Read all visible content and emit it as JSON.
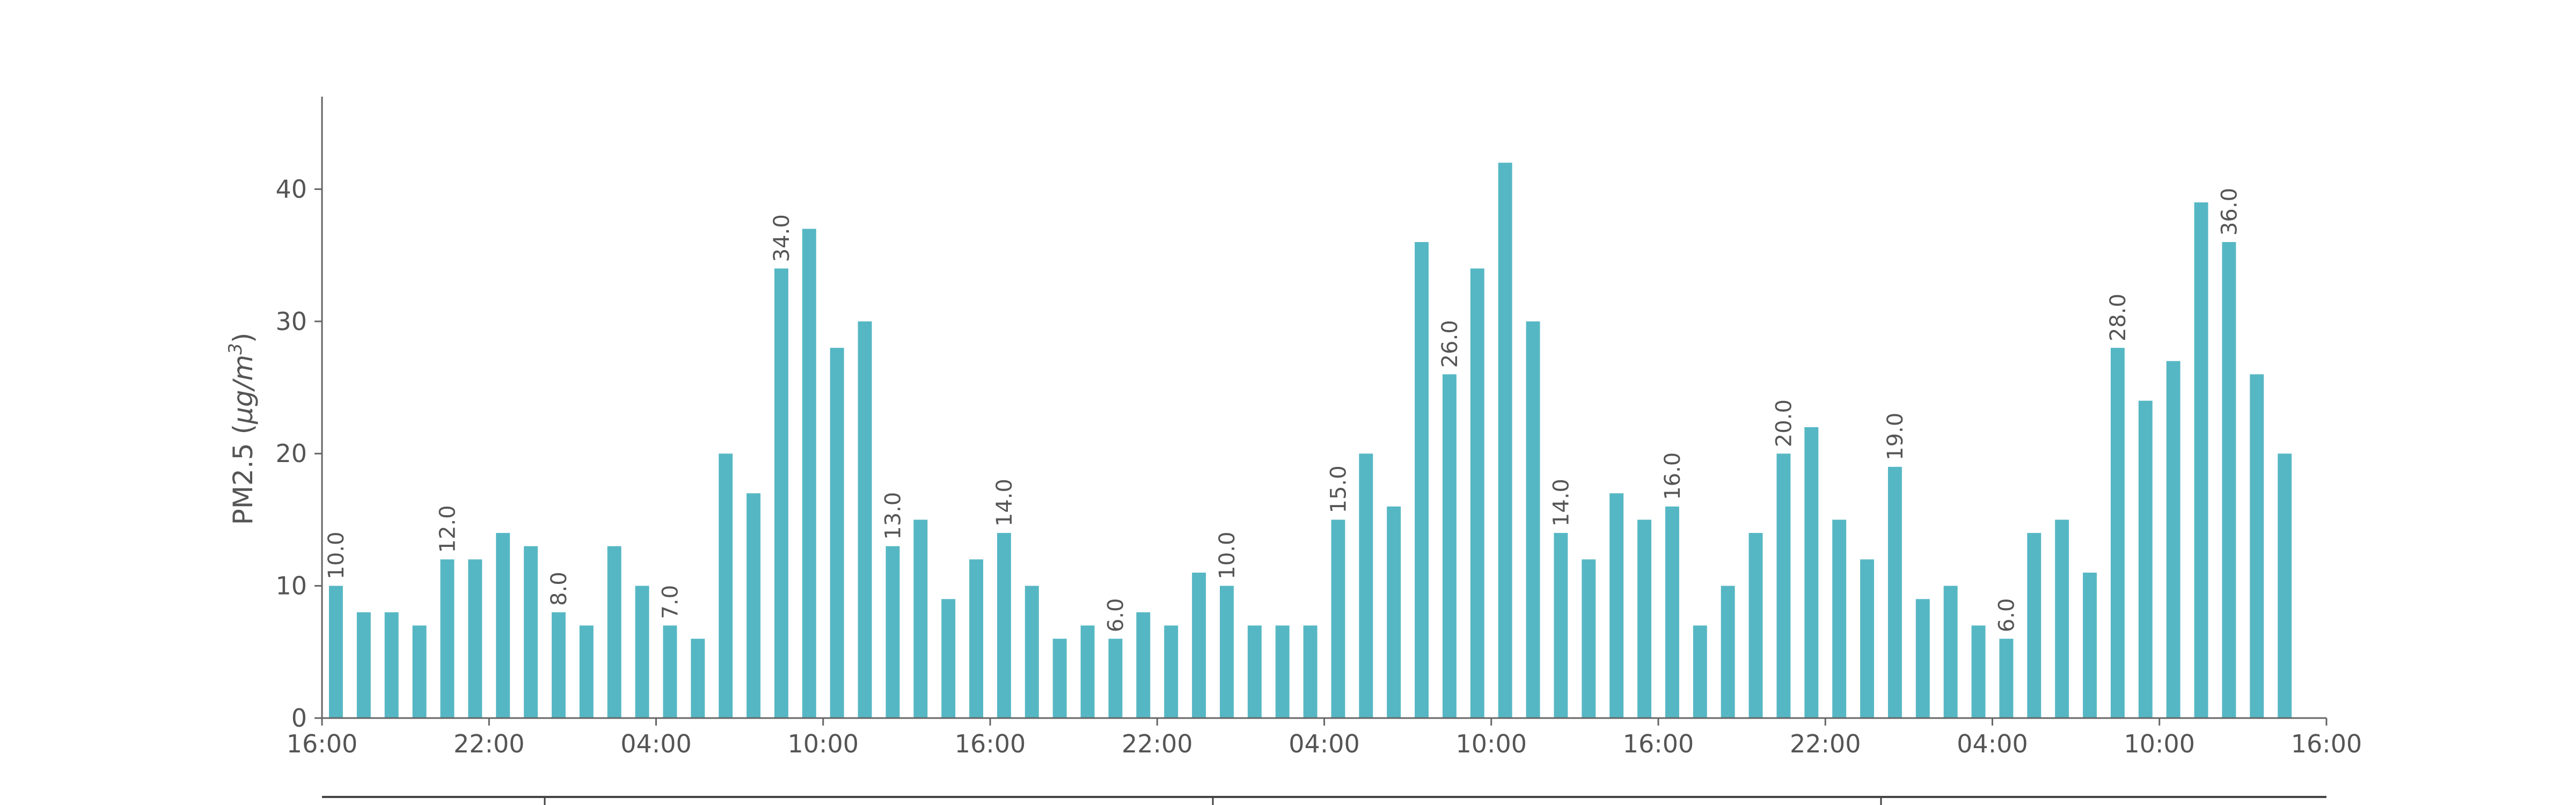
{
  "chart_data": {
    "type": "bar",
    "ylabel": "PM2.5 (μg/m³)",
    "ylabel_parts": {
      "prefix": "PM2.5 (",
      "unit_main": "μg/m",
      "unit_exp": "3",
      "suffix": ")"
    },
    "ylim": [
      0,
      47
    ],
    "yticks": [
      0,
      10,
      20,
      30,
      40
    ],
    "bar_color": "#56b7c4",
    "x_range": [
      0,
      72
    ],
    "xticks": [
      {
        "pos": 0,
        "label": "16:00"
      },
      {
        "pos": 6,
        "label": "22:00"
      },
      {
        "pos": 12,
        "label": "04:00"
      },
      {
        "pos": 18,
        "label": "10:00"
      },
      {
        "pos": 24,
        "label": "16:00"
      },
      {
        "pos": 30,
        "label": "22:00"
      },
      {
        "pos": 36,
        "label": "04:00"
      },
      {
        "pos": 42,
        "label": "10:00"
      },
      {
        "pos": 48,
        "label": "16:00"
      },
      {
        "pos": 54,
        "label": "22:00"
      },
      {
        "pos": 60,
        "label": "04:00"
      },
      {
        "pos": 66,
        "label": "10:00"
      },
      {
        "pos": 72,
        "label": "16:00"
      }
    ],
    "secondary_axis_ticks": [
      8,
      32,
      56
    ],
    "values": [
      10,
      8,
      8,
      7,
      12,
      12,
      14,
      13,
      8,
      7,
      13,
      10,
      7,
      6,
      20,
      17,
      34,
      37,
      28,
      30,
      13,
      15,
      9,
      12,
      14,
      10,
      6,
      7,
      6,
      8,
      7,
      11,
      10,
      7,
      7,
      7,
      15,
      20,
      16,
      36,
      26,
      34,
      42,
      30,
      14,
      12,
      17,
      15,
      16,
      7,
      10,
      14,
      20,
      22,
      15,
      12,
      19,
      9,
      10,
      7,
      6,
      14,
      15,
      11,
      28,
      24,
      27,
      39,
      36,
      26,
      20
    ],
    "data_labels": [
      {
        "index": 0,
        "text": "10.0"
      },
      {
        "index": 4,
        "text": "12.0"
      },
      {
        "index": 8,
        "text": "8.0"
      },
      {
        "index": 12,
        "text": "7.0"
      },
      {
        "index": 16,
        "text": "34.0"
      },
      {
        "index": 20,
        "text": "13.0"
      },
      {
        "index": 24,
        "text": "14.0"
      },
      {
        "index": 28,
        "text": "6.0"
      },
      {
        "index": 32,
        "text": "10.0"
      },
      {
        "index": 36,
        "text": "15.0"
      },
      {
        "index": 40,
        "text": "26.0"
      },
      {
        "index": 44,
        "text": "14.0"
      },
      {
        "index": 48,
        "text": "16.0"
      },
      {
        "index": 52,
        "text": "20.0"
      },
      {
        "index": 56,
        "text": "19.0"
      },
      {
        "index": 60,
        "text": "6.0"
      },
      {
        "index": 64,
        "text": "28.0"
      },
      {
        "index": 68,
        "text": "36.0"
      }
    ]
  }
}
